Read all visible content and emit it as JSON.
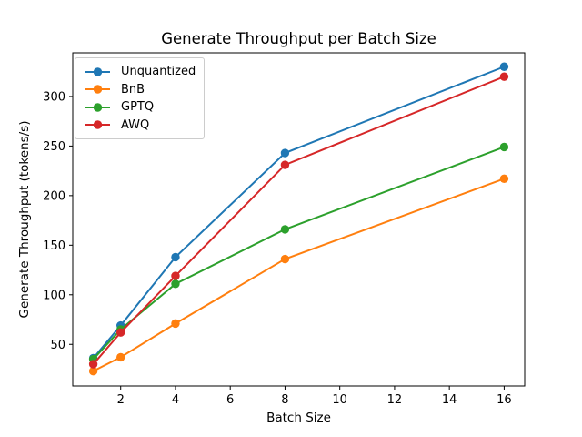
{
  "chart_data": {
    "type": "line",
    "title": "Generate Throughput per Batch Size",
    "xlabel": "Batch Size",
    "ylabel": "Generate Throughput (tokens/s)",
    "x": [
      1,
      2,
      4,
      8,
      16
    ],
    "series": [
      {
        "id": "unquantized",
        "name": "Unquantized",
        "color": "#1f77b4",
        "values": [
          36,
          69,
          138,
          243,
          330
        ]
      },
      {
        "id": "bnb",
        "name": "BnB",
        "color": "#ff7f0e",
        "values": [
          23,
          37,
          71,
          136,
          217
        ]
      },
      {
        "id": "gptq",
        "name": "GPTQ",
        "color": "#2ca02c",
        "values": [
          35,
          65,
          111,
          166,
          249
        ]
      },
      {
        "id": "awq",
        "name": "AWQ",
        "color": "#d62728",
        "values": [
          30,
          62,
          119,
          231,
          320
        ]
      }
    ],
    "xticks": [
      2,
      4,
      6,
      8,
      10,
      12,
      14,
      16
    ],
    "yticks": [
      50,
      100,
      150,
      200,
      250,
      300
    ],
    "xlim": [
      0.25,
      16.75
    ],
    "ylim": [
      8,
      344
    ],
    "grid": false,
    "legend_position": "upper left",
    "marker": "o",
    "background_color": "#ffffff",
    "spine_color": "#000000"
  }
}
